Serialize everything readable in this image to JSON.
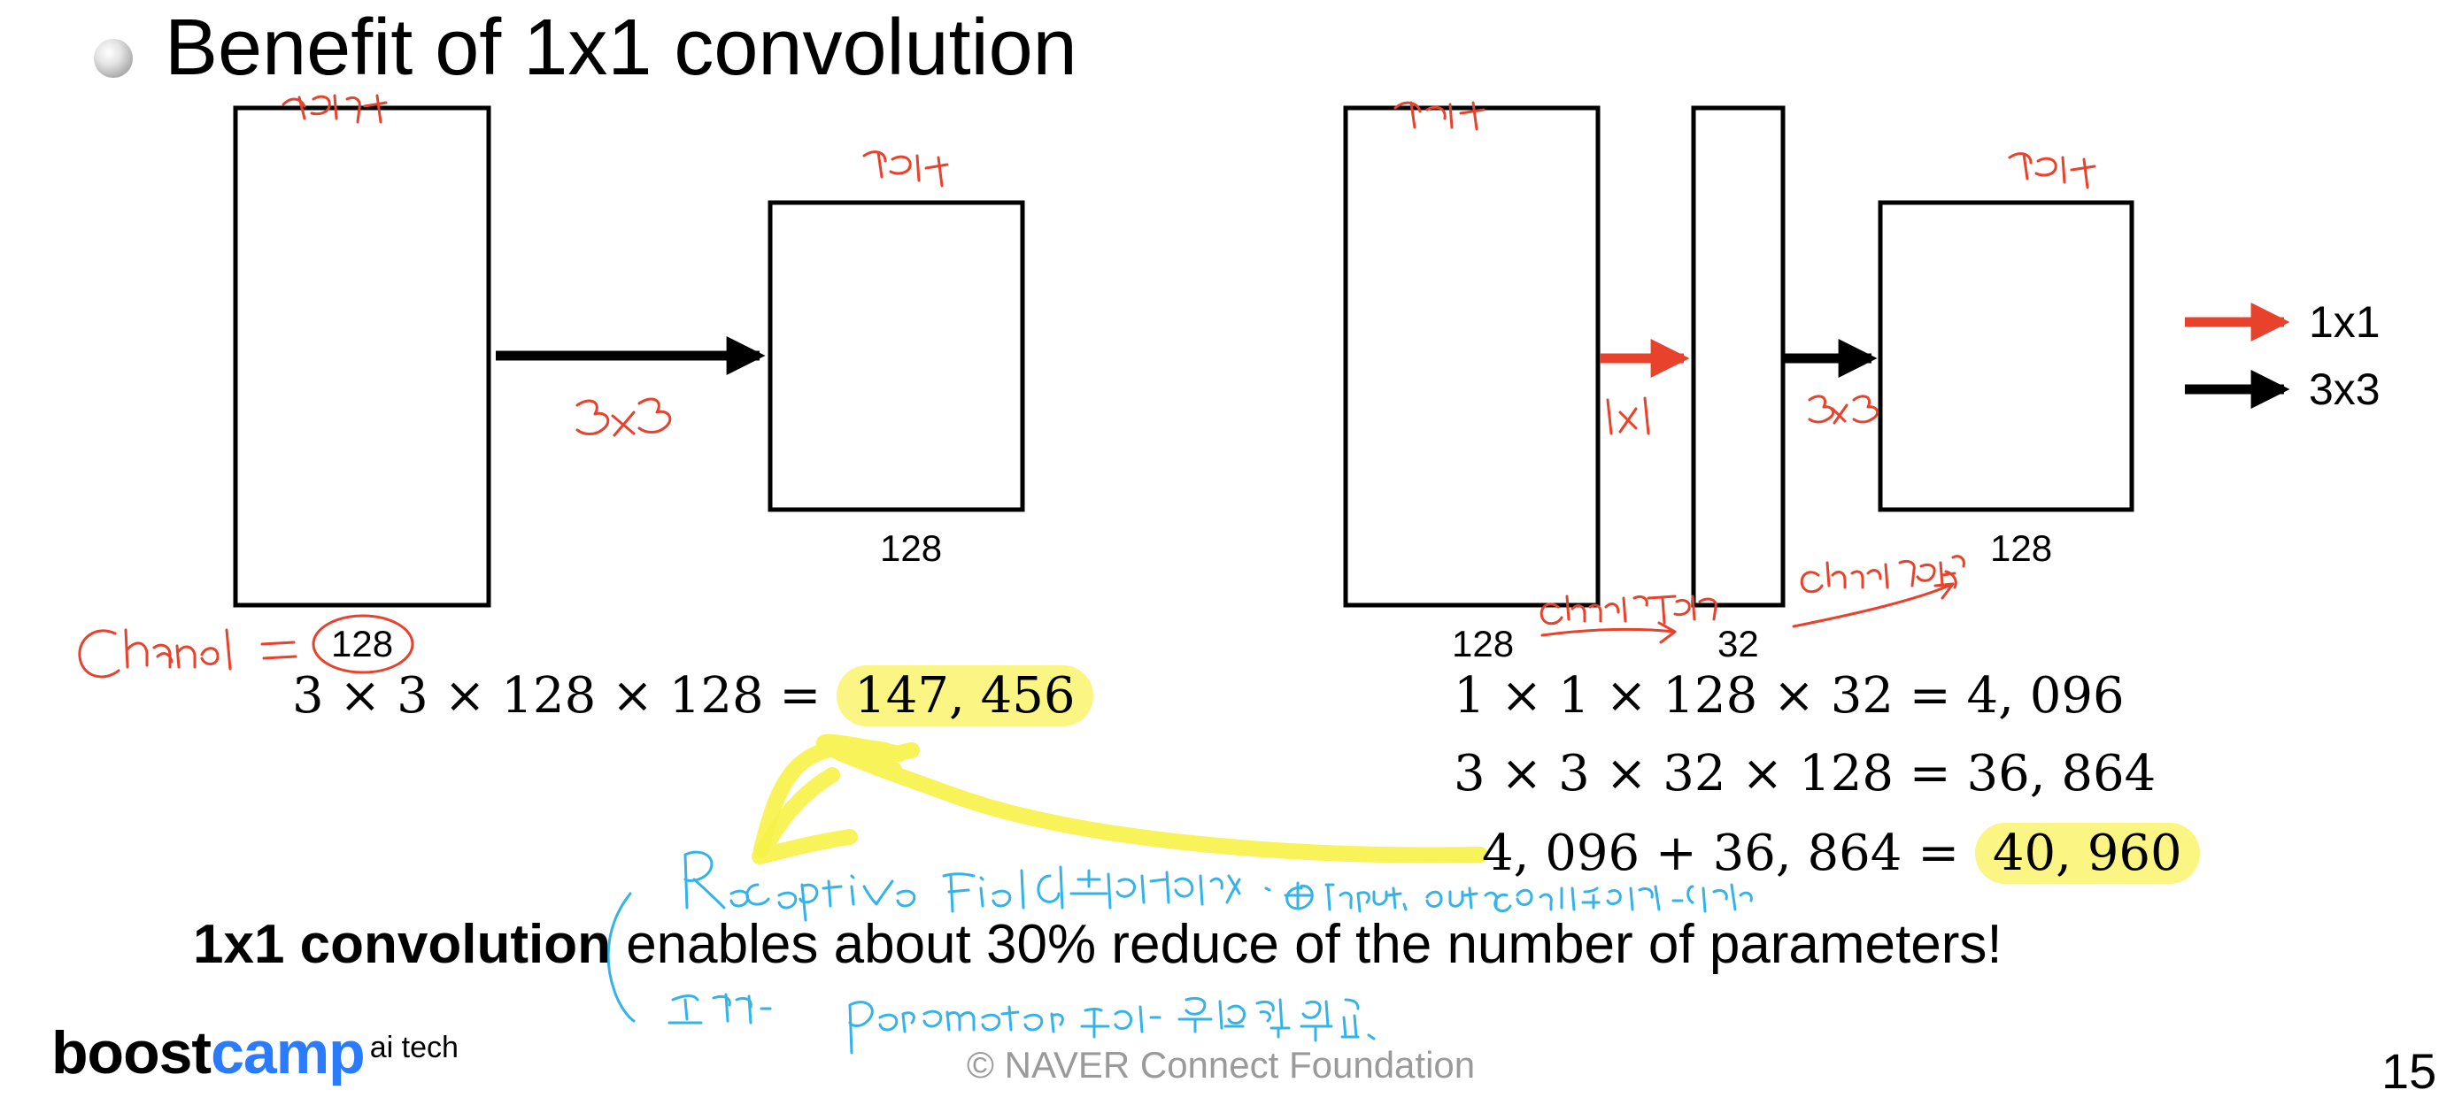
{
  "title": "Benefit of 1x1 convolution",
  "left_diagram": {
    "input_channels": "128",
    "output_channels": "128",
    "equation": "3 × 3 × 128 × 128 = ",
    "result": "147, 456"
  },
  "right_diagram": {
    "input_channels": "128",
    "mid_channels": "32",
    "output_channels": "128",
    "eq1": "1 × 1 × 128 × 32 = 4, 096",
    "eq2": "3 × 3 × 32 × 128 = 36, 864",
    "eq3": "4, 096 + 36, 864 = ",
    "result": "40, 960"
  },
  "legend": {
    "item1": "1x1",
    "item2": "3x3",
    "color1": "#e8412c",
    "color2": "#000000"
  },
  "summary": {
    "bold": "1x1 convolution",
    "rest": " enables about 30% reduce of the number of parameters!"
  },
  "logo": {
    "part1": "boost",
    "part2": "camp",
    "sup": "ai tech"
  },
  "footer": "©  NAVER Connect Foundation",
  "page_number": "15",
  "annotations": {
    "channel": "Channel = ",
    "3x3": "3x3",
    "1x1": "1x1",
    "receptive": "Receptive field 관점에서는 동일. ⊕ Input, output channel도 동일",
    "param": "근데 parameter 수가 엄청 줄음."
  }
}
